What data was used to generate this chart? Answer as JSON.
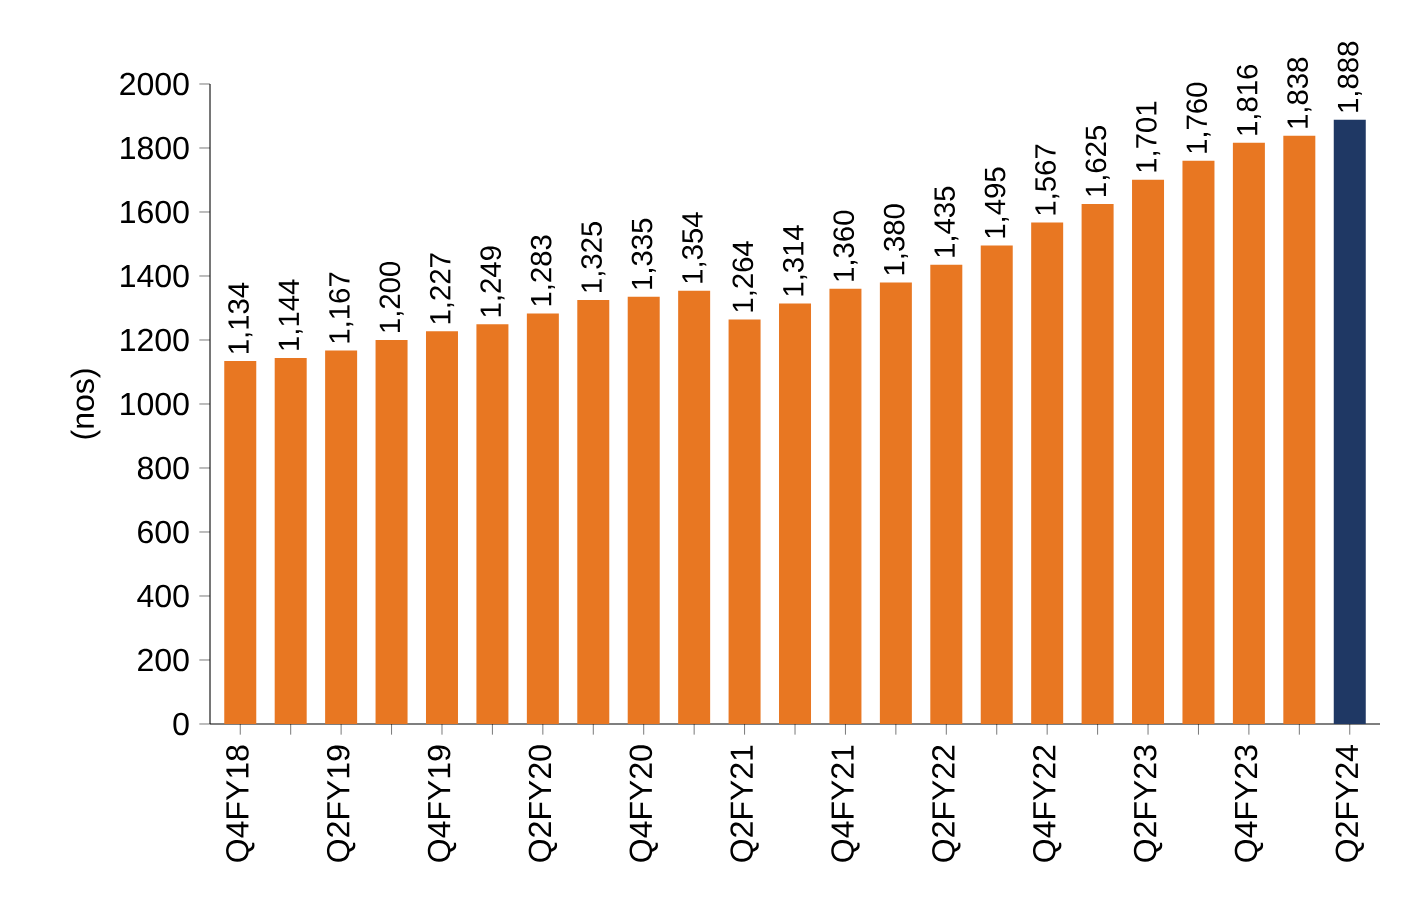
{
  "chart_data": {
    "type": "bar",
    "ylabel": "(nos)",
    "categories": [
      "Q4FY18",
      null,
      "Q2FY19",
      null,
      "Q4FY19",
      null,
      "Q2FY20",
      null,
      "Q4FY20",
      null,
      "Q2FY21",
      null,
      "Q4FY21",
      null,
      "Q2FY22",
      null,
      "Q4FY22",
      null,
      "Q2FY23",
      null,
      "Q4FY23",
      null,
      "Q2FY24"
    ],
    "values": [
      1134,
      1144,
      1167,
      1200,
      1227,
      1249,
      1283,
      1325,
      1335,
      1354,
      1264,
      1314,
      1360,
      1380,
      1435,
      1495,
      1567,
      1625,
      1701,
      1760,
      1816,
      1838,
      1888
    ],
    "value_labels": [
      "1,134",
      "1,144",
      "1,167",
      "1,200",
      "1,227",
      "1,249",
      "1,283",
      "1,325",
      "1,335",
      "1,354",
      "1,264",
      "1,314",
      "1,360",
      "1,380",
      "1,435",
      "1,495",
      "1,567",
      "1,625",
      "1,701",
      "1,760",
      "1,816",
      "1,838",
      "1,888"
    ],
    "colors": [
      "#e87722",
      "#e87722",
      "#e87722",
      "#e87722",
      "#e87722",
      "#e87722",
      "#e87722",
      "#e87722",
      "#e87722",
      "#e87722",
      "#e87722",
      "#e87722",
      "#e87722",
      "#e87722",
      "#e87722",
      "#e87722",
      "#e87722",
      "#e87722",
      "#e87722",
      "#e87722",
      "#e87722",
      "#e87722",
      "#1f3864"
    ],
    "ylim": [
      0,
      2000
    ],
    "yticks": [
      0,
      200,
      400,
      600,
      800,
      1000,
      1200,
      1400,
      1600,
      1800,
      2000
    ]
  }
}
